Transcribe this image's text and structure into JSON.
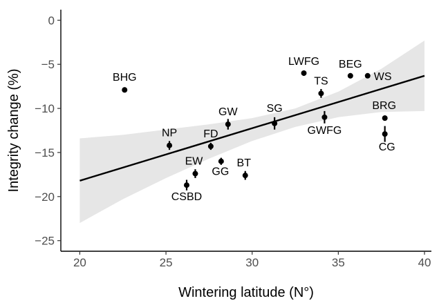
{
  "chart_data": {
    "type": "scatter",
    "title": "",
    "xlabel": "Wintering latitude (N°)",
    "ylabel": "Integrity change (%)",
    "xlim": [
      18.9,
      40.4
    ],
    "ylim": [
      -26.2,
      1.2
    ],
    "xticks": [
      20,
      25,
      30,
      35,
      40
    ],
    "yticks": [
      0,
      -5,
      -10,
      -15,
      -20,
      -25
    ],
    "x_tick_labels": [
      "20",
      "25",
      "30",
      "35",
      "40"
    ],
    "y_tick_labels": [
      "0",
      "−5",
      "−10",
      "−15",
      "−20",
      "−25"
    ],
    "grid": false,
    "legend": "none",
    "fit_line": {
      "x": [
        20,
        40
      ],
      "y": [
        -18.2,
        -6.3
      ]
    },
    "confidence_band": {
      "x": [
        20,
        22.5,
        25,
        27.5,
        30,
        32.5,
        35,
        37.5,
        40
      ],
      "lower": [
        -23.0,
        -20.3,
        -17.9,
        -15.7,
        -13.7,
        -12.1,
        -11.0,
        -10.4,
        -10.3
      ],
      "upper": [
        -13.4,
        -13.0,
        -12.4,
        -11.8,
        -11.1,
        -10.0,
        -8.1,
        -5.5,
        -2.3
      ]
    },
    "points": [
      {
        "label": "BHG",
        "x": 22.6,
        "y": -7.9,
        "err": 0.3
      },
      {
        "label": "NP",
        "x": 25.2,
        "y": -14.2,
        "err": 0.5
      },
      {
        "label": "CSBD",
        "x": 26.2,
        "y": -18.7,
        "err": 0.6
      },
      {
        "label": "EW",
        "x": 26.7,
        "y": -17.4,
        "err": 0.5
      },
      {
        "label": "FD",
        "x": 27.6,
        "y": -14.3,
        "err": 0.4
      },
      {
        "label": "GG",
        "x": 28.2,
        "y": -16.0,
        "err": 0.4
      },
      {
        "label": "GW",
        "x": 28.6,
        "y": -11.8,
        "err": 0.6
      },
      {
        "label": "BT",
        "x": 29.6,
        "y": -17.6,
        "err": 0.5
      },
      {
        "label": "SG",
        "x": 31.3,
        "y": -11.7,
        "err": 0.7
      },
      {
        "label": "LWFG",
        "x": 33.0,
        "y": -6.0,
        "err": 0.3
      },
      {
        "label": "TS",
        "x": 34.0,
        "y": -8.3,
        "err": 0.5
      },
      {
        "label": "GWFG",
        "x": 34.2,
        "y": -11.0,
        "err": 0.7
      },
      {
        "label": "BEG",
        "x": 35.7,
        "y": -6.3,
        "err": 0.3
      },
      {
        "label": "WS",
        "x": 36.7,
        "y": -6.3,
        "err": 0.2
      },
      {
        "label": "BRG",
        "x": 37.7,
        "y": -11.1,
        "err": 0.3
      },
      {
        "label": "CG",
        "x": 37.7,
        "y": -12.9,
        "err": 0.9
      }
    ]
  }
}
